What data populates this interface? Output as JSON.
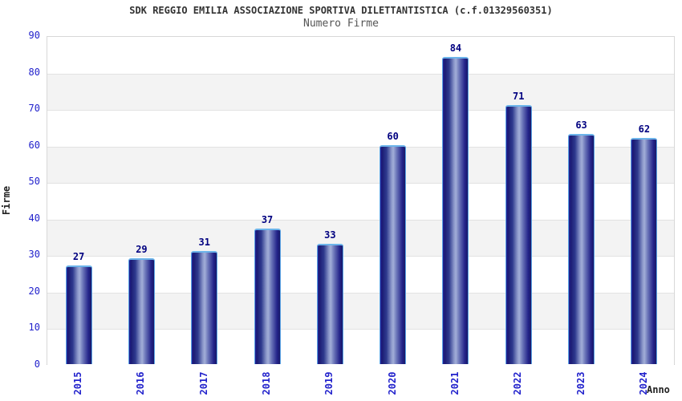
{
  "chart_data": {
    "type": "bar",
    "title": "SDK REGGIO EMILIA ASSOCIAZIONE SPORTIVA DILETTANTISTICA (c.f.01329560351)",
    "subtitle": "Numero Firme",
    "categories": [
      "2015",
      "2016",
      "2017",
      "2018",
      "2019",
      "2020",
      "2021",
      "2022",
      "2023",
      "2024"
    ],
    "values": [
      27,
      29,
      31,
      37,
      33,
      60,
      84,
      71,
      63,
      62
    ],
    "xlabel": "Anno",
    "ylabel": "Firme",
    "ylim": [
      0,
      90
    ],
    "ytick_step": 10,
    "yticks": [
      0,
      10,
      20,
      30,
      40,
      50,
      60,
      70,
      80,
      90
    ],
    "grid": "horizontal alternating bands",
    "legend": false,
    "colors": {
      "tick_label_blue": "#2222cc",
      "value_label_navy": "#000080",
      "bar_dark": "#1b1b74",
      "bar_light": "#a2aed8",
      "bar_border": "#5ba4e5",
      "band_gray": "#f3f3f3",
      "band_white": "#ffffff",
      "plot_border": "#d8d8d8",
      "title_color": "#333333",
      "subtitle_color": "#555555"
    }
  }
}
